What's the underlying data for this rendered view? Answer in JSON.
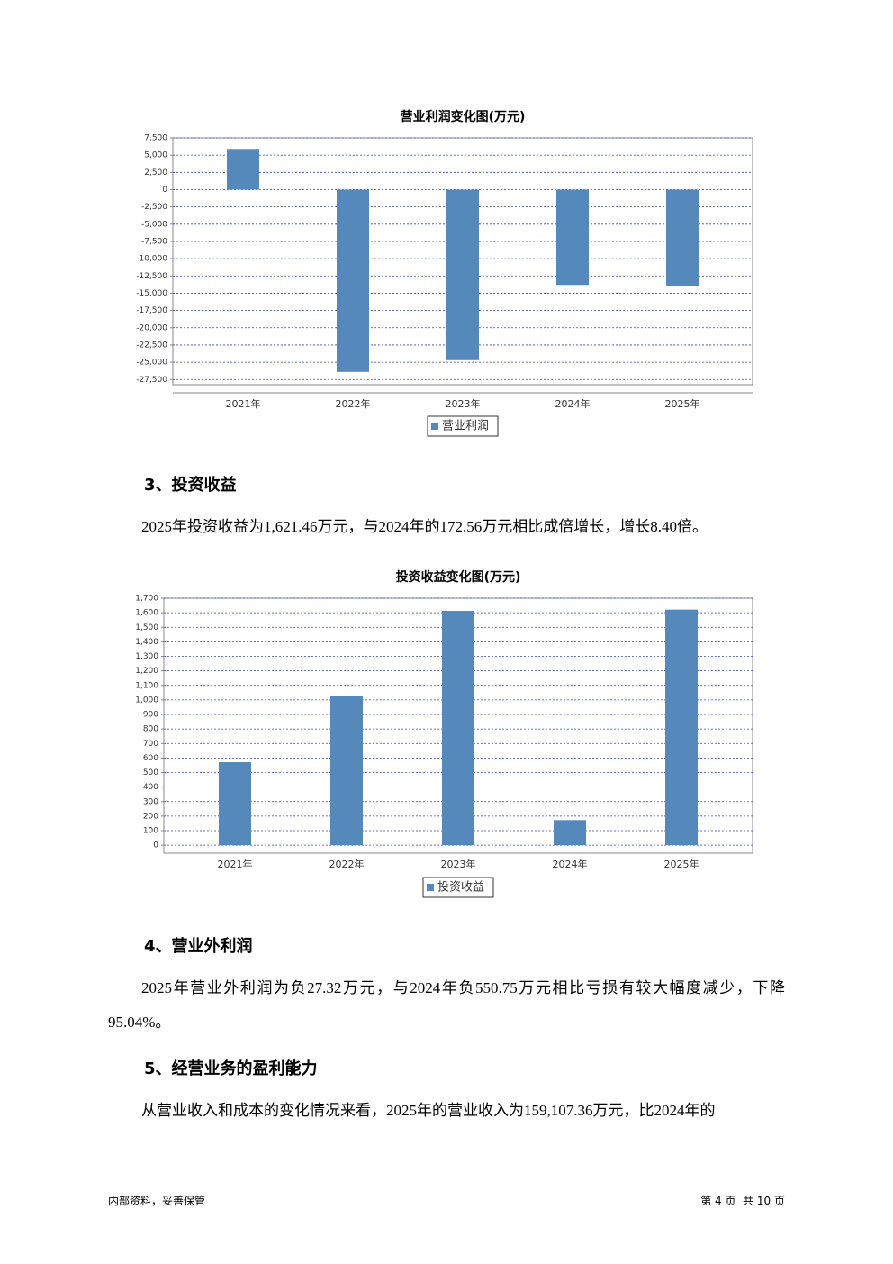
{
  "chart_data": [
    {
      "type": "bar",
      "title": "营业利润变化图(万元)",
      "categories": [
        "2021年",
        "2022年",
        "2023年",
        "2024年",
        "2025年"
      ],
      "series": [
        {
          "name": "营业利润",
          "color": "#5588bb",
          "values": [
            5900,
            -26400,
            -24700,
            -13800,
            -14000
          ]
        }
      ],
      "ylim": [
        -28250,
        7500
      ],
      "yticks": [
        {
          "value": 7500,
          "label": "7,500"
        },
        {
          "value": 5000,
          "label": "5,000"
        },
        {
          "value": 2500,
          "label": "2,500"
        },
        0,
        {
          "value": -2500,
          "label": "-2,500"
        },
        {
          "value": -5000,
          "label": "-5,000"
        },
        {
          "value": -7500,
          "label": "-7,500"
        },
        {
          "value": -10000,
          "label": "-10,000"
        },
        {
          "value": -12500,
          "label": "-12,500"
        },
        {
          "value": -15000,
          "label": "-15,000"
        },
        {
          "value": -17500,
          "label": "-17,500"
        },
        {
          "value": -20000,
          "label": "-20,000"
        },
        {
          "value": -22500,
          "label": "-22,500"
        },
        {
          "value": -25000,
          "label": "-25,000"
        },
        {
          "value": -27500,
          "label": "-27,500"
        }
      ],
      "grid": true
    },
    {
      "type": "bar",
      "title": "投资收益变化图(万元)",
      "categories": [
        "2021年",
        "2022年",
        "2023年",
        "2024年",
        "2025年"
      ],
      "series": [
        {
          "name": "投资收益",
          "color": "#5588bb",
          "values": [
            571,
            1024,
            1613,
            172.56,
            1621.46
          ]
        }
      ],
      "ylim": [
        -55,
        1700
      ],
      "yticks": [
        {
          "value": 1700,
          "label": "1,700"
        },
        {
          "value": 1600,
          "label": "1,600"
        },
        {
          "value": 1500,
          "label": "1,500"
        },
        {
          "value": 1400,
          "label": "1,400"
        },
        {
          "value": 1300,
          "label": "1,300"
        },
        {
          "value": 1200,
          "label": "1,200"
        },
        {
          "value": 1100,
          "label": "1,100"
        },
        {
          "value": 1000,
          "label": "1,000"
        },
        900,
        800,
        700,
        600,
        500,
        400,
        300,
        200,
        100,
        0
      ],
      "grid": true
    }
  ],
  "sections": [
    {
      "heading": "3、投资收益",
      "text": "2025年投资收益为1,621.46万元，与2024年的172.56万元相比成倍增长，增长8.40倍。"
    },
    {
      "heading": "4、营业外利润",
      "text": "2025年营业外利润为负27.32万元，与2024年负550.75万元相比亏损有较大幅度减少，下降95.04%。"
    },
    {
      "heading": "5、经营业务的盈利能力",
      "text": "从营业收入和成本的变化情况来看，2025年的营业收入为159,107.36万元，比2024年的"
    }
  ],
  "footer": {
    "left": "内部资料，妥善保管",
    "right": "第 4 页  共 10 页"
  }
}
